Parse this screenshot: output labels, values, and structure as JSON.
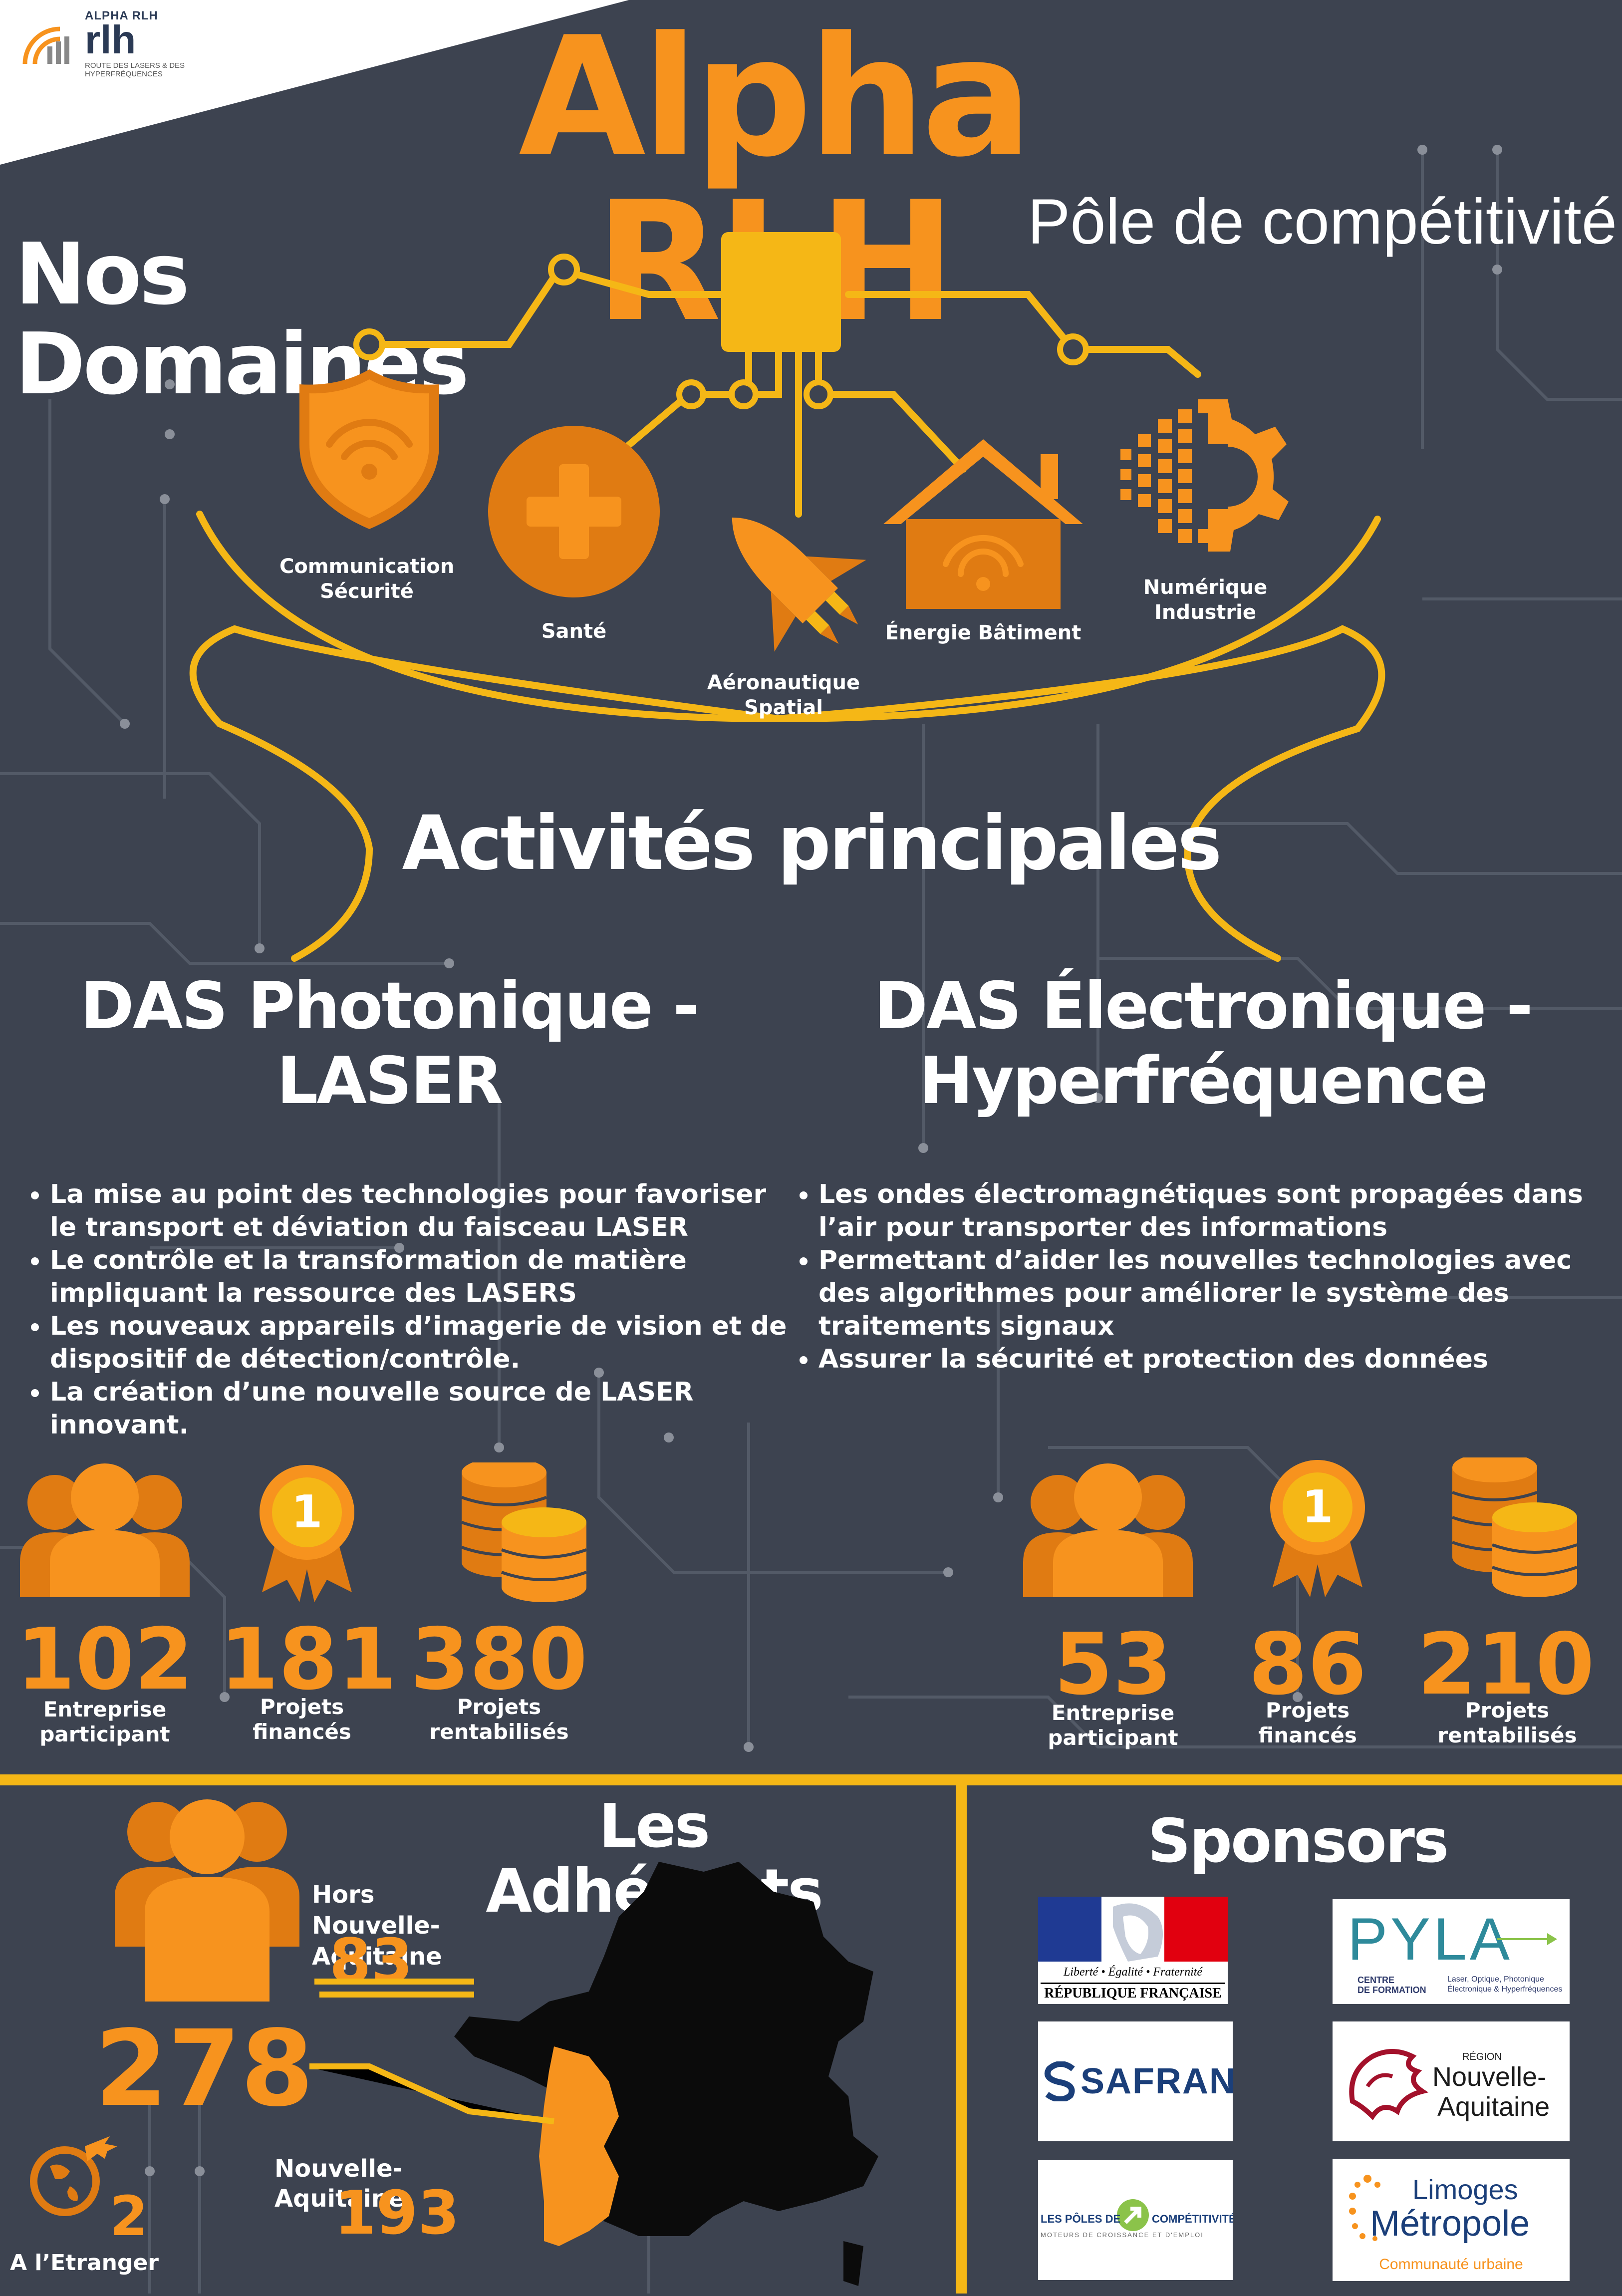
{
  "brand": {
    "logo_text": "ALPHA RLH",
    "logo_subtext": "ROUTE DES LASERS & DES HYPERFRÉQUENCES",
    "title": "Alpha RLH",
    "subtitle": "Pôle de compétitivité"
  },
  "domains": {
    "heading": "Nos Domaines",
    "items": [
      {
        "label": "Communication Sécurité",
        "icon": "shield-wifi-icon"
      },
      {
        "label": "Santé",
        "icon": "medical-cross-icon"
      },
      {
        "label": "Aéronautique Spatial",
        "icon": "space-shuttle-icon"
      },
      {
        "label": "Énergie Bâtiment",
        "icon": "smart-house-icon"
      },
      {
        "label": "Numérique Industrie",
        "icon": "digital-gear-icon"
      }
    ]
  },
  "activities": {
    "heading": "Activités principales",
    "photonique": {
      "title_line1": "DAS Photonique -",
      "title_line2": "LASER",
      "bullets": [
        "La mise au point des technologies pour favoriser le transport et déviation du faisceau LASER",
        "Le contrôle et la transformation de matière impliquant la ressource des LASERS",
        "Les nouveaux appareils d’imagerie de vision et de dispositif de détection/contrôle.",
        "La création d’une nouvelle source de LASER innovant."
      ],
      "stats": [
        {
          "value": "102",
          "label_line1": "Entreprise",
          "label_line2": "participant",
          "icon": "people-icon"
        },
        {
          "value": "181",
          "label_line1": "Projets",
          "label_line2": "financés",
          "icon": "medal-icon"
        },
        {
          "value": "380",
          "label_line1": "Projets",
          "label_line2": "rentabilisés",
          "icon": "coins-icon"
        }
      ],
      "medal_text": "1"
    },
    "electronique": {
      "title_line1": "DAS Électronique -",
      "title_line2": "Hyperfréquence",
      "bullets": [
        "Les ondes électromagnétiques sont propagées dans l’air pour transporter des informations",
        "Permettant d’aider les nouvelles technologies avec des algorithmes pour améliorer le système des traitements signaux",
        "Assurer la sécurité et protection des données"
      ],
      "stats": [
        {
          "value": "53",
          "label_line1": "Entreprise",
          "label_line2": "participant",
          "icon": "people-icon"
        },
        {
          "value": "86",
          "label_line1": "Projets",
          "label_line2": "financés",
          "icon": "medal-icon"
        },
        {
          "value": "210",
          "label_line1": "Projets",
          "label_line2": "rentabilisés",
          "icon": "coins-icon"
        }
      ],
      "medal_text": "1"
    }
  },
  "members": {
    "heading": "Les Adhérents",
    "total": "278",
    "outside_label_line1": "Hors",
    "outside_label_line2": "Nouvelle-Aquitaine",
    "outside_value": "83",
    "inside_label": "Nouvelle-Aquitaine",
    "inside_value": "193",
    "abroad_value": "2",
    "abroad_label": "A l’Etranger"
  },
  "sponsors": {
    "heading": "Sponsors",
    "rf": {
      "motto1": "Liberté",
      "motto2": "Égalité",
      "motto3": "Fraternité",
      "name": "RÉPUBLIQUE FRANÇAISE"
    },
    "pyla": {
      "name": "PYLA",
      "sub1": "CENTRE",
      "sub2": "DE FORMATION",
      "desc1": "Laser, Optique, Photonique",
      "desc2": "Électronique & Hyperfréquences"
    },
    "safran": {
      "name": "SAFRAN"
    },
    "region": {
      "small": "RÉGION",
      "name1": "Nouvelle-",
      "name2": "Aquitaine"
    },
    "poles": {
      "name1": "LES PÔLES DE",
      "name2": "COMPÉTITIVITÉ",
      "tagline": "MOTEURS DE CROISSANCE ET D'EMPLOI"
    },
    "limoges": {
      "name1": "Limoges",
      "name2": "Métropole",
      "tagline": "Communauté urbaine"
    }
  },
  "colors": {
    "background": "#3d4350",
    "orange": "#f7931e",
    "yellow": "#f5b716",
    "circuit": "#555b68"
  }
}
